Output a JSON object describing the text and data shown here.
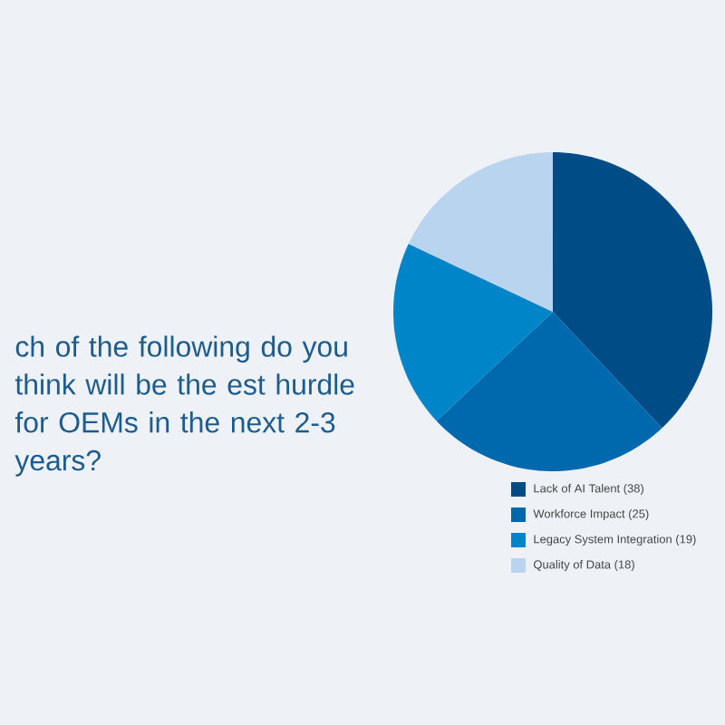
{
  "chart_data": {
    "type": "pie",
    "title": "ch of the following do you think will be the est hurdle for OEMs in the next 2-3 years?",
    "categories": [
      "Lack of AI Talent (38)",
      "Workforce Impact (25)",
      "Legacy System Integration (19)",
      "Quality of Data (18)"
    ],
    "values": [
      38,
      25,
      19,
      18
    ],
    "colors": [
      "#004c87",
      "#0068ad",
      "#0085c8",
      "#b8d4ee"
    ],
    "legend": "bottom"
  }
}
